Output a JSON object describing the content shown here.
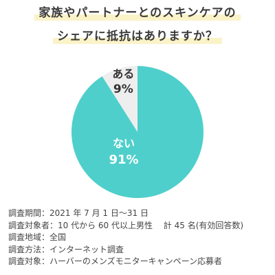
{
  "title": {
    "line1": "家族やパートナーとのスキンケアの",
    "line2": "シェアに抵抗はありますか？"
  },
  "colors": {
    "yes": "#eeeeee",
    "no": "#4fcfcb",
    "title_highlight": "#fbf3c8"
  },
  "chart_data": {
    "type": "pie",
    "slices": [
      {
        "label": "ある",
        "value": 9,
        "value_label": "9%",
        "color": "#eeeeee",
        "text_color": "#333333"
      },
      {
        "label": "ない",
        "value": 91,
        "value_label": "91%",
        "color": "#4fcfcb",
        "text_color": "#ffffff"
      }
    ],
    "start": "12 o'clock",
    "direction": "counter-clockwise for ある, remainder ない"
  },
  "survey": [
    "調査期間：2021 年 7 月 1 日〜31 日",
    "調査対象者：10 代から 60 代以上男性　 計 45 名(有効回答数)",
    "調査地域：全国",
    "調査方法：インターネット調査",
    "調査対象：ハーバーのメンズモニターキャンペーン応募者"
  ]
}
